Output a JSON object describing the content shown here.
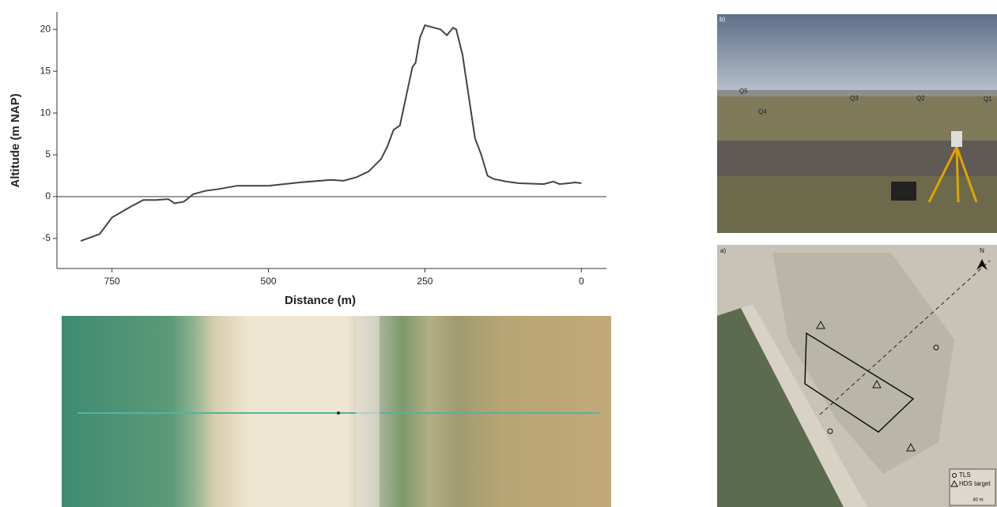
{
  "chart_data": {
    "type": "line",
    "x_label": "Distance (m)",
    "y_label": "Altitude (m NAP)",
    "x": [
      800,
      770,
      750,
      720,
      700,
      680,
      660,
      650,
      635,
      620,
      600,
      580,
      550,
      500,
      450,
      400,
      380,
      360,
      340,
      320,
      310,
      300,
      290,
      280,
      270,
      265,
      258,
      250,
      240,
      225,
      215,
      205,
      200,
      190,
      180,
      170,
      160,
      150,
      140,
      120,
      100,
      60,
      45,
      35,
      20,
      10,
      0
    ],
    "series": [
      {
        "color": "#444444",
        "values": [
          -5.3,
          -4.5,
          -2.5,
          -1.2,
          -0.4,
          -0.4,
          -0.3,
          -0.8,
          -0.6,
          0.3,
          0.7,
          0.9,
          1.3,
          1.3,
          1.7,
          2.0,
          1.9,
          2.3,
          3.0,
          4.5,
          6.0,
          8.0,
          8.5,
          12.0,
          15.5,
          16.0,
          19.0,
          20.5,
          20.3,
          20.0,
          19.3,
          20.2,
          20.0,
          17.0,
          12.0,
          7.0,
          5.0,
          2.5,
          2.1,
          1.8,
          1.6,
          1.5,
          1.8,
          1.5,
          1.6,
          1.7,
          1.6
        ]
      }
    ],
    "xlim": [
      838,
      -40
    ],
    "ylim": [
      -8.6,
      22.1
    ],
    "xticks": [
      750,
      500,
      250,
      0
    ],
    "yticks": [
      -5,
      0,
      5,
      10,
      15,
      20
    ],
    "hline": 0
  },
  "photo_b": {
    "label": "b)",
    "markers": [
      "Q5",
      "Q4",
      "Q3",
      "Q2",
      "Q1"
    ]
  },
  "map_a": {
    "label": "a)",
    "north": "N",
    "legend": [
      "TLS",
      "HDS target"
    ],
    "scale": "40 m"
  }
}
